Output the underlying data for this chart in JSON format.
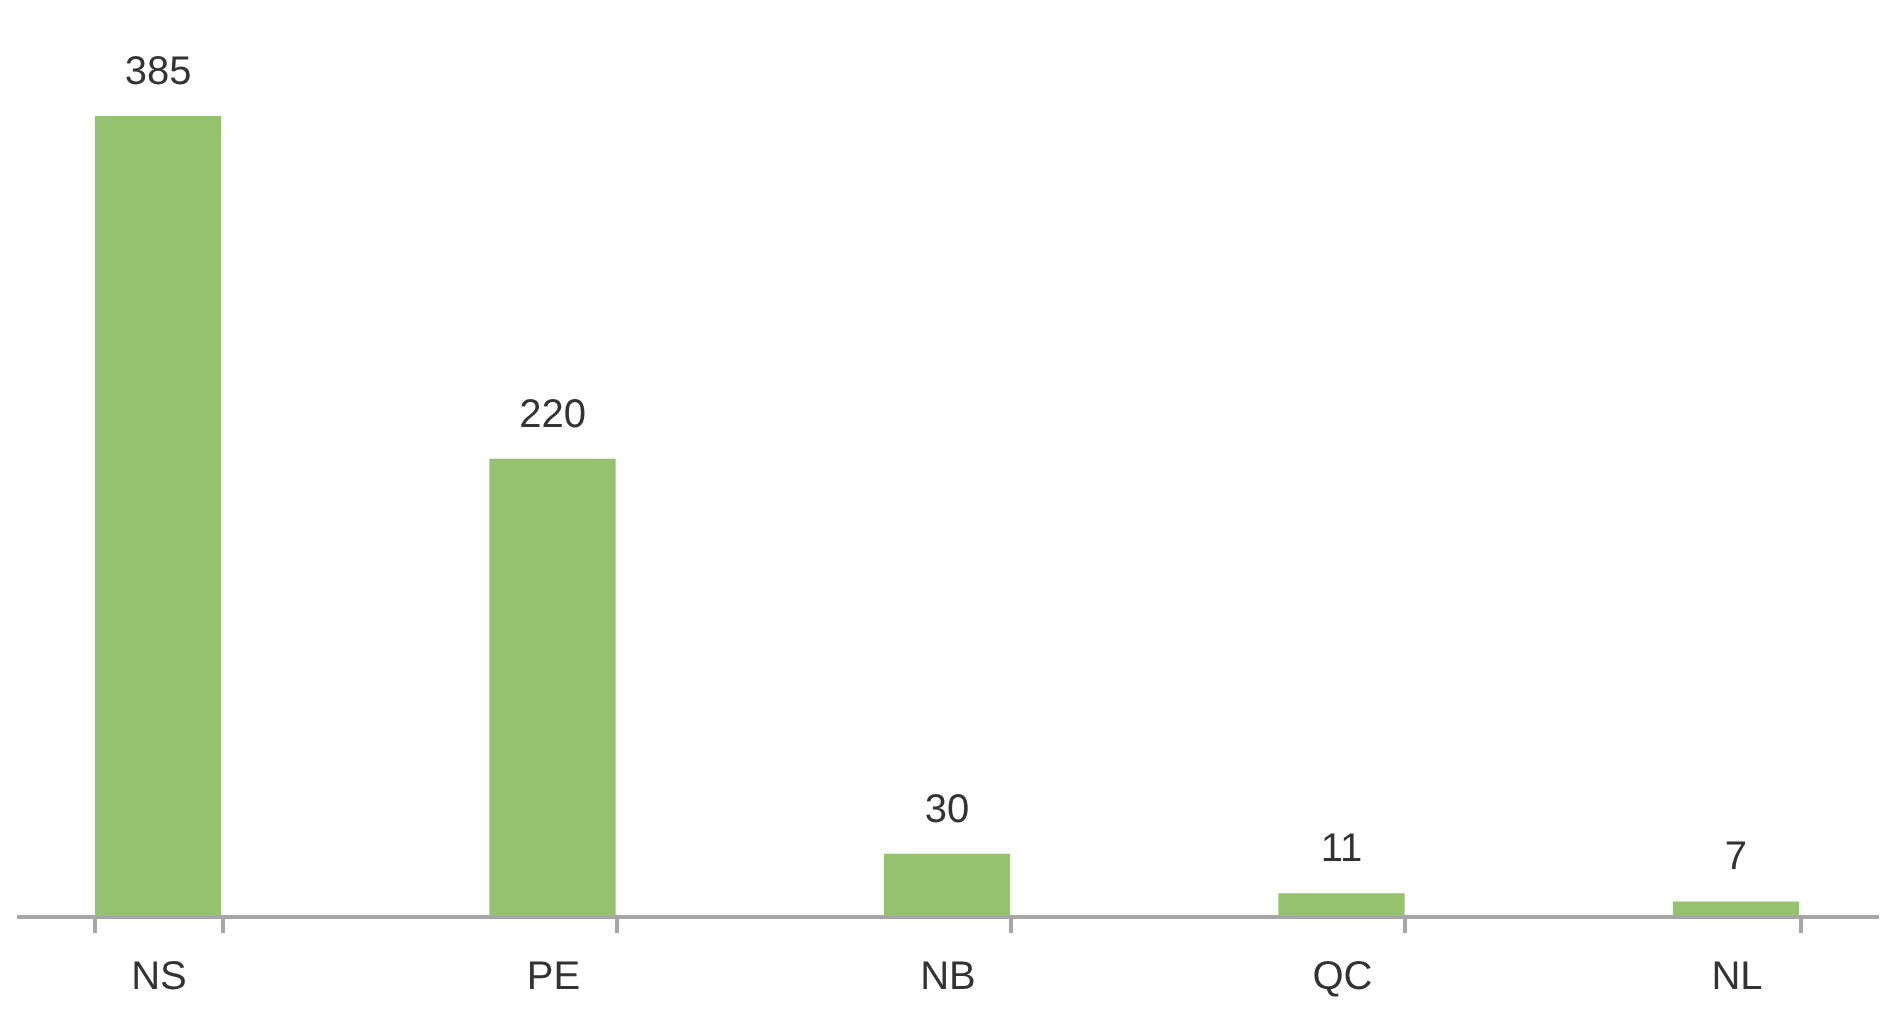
{
  "chart_data": {
    "type": "bar",
    "categories": [
      "NS",
      "PE",
      "NB",
      "QC",
      "NL"
    ],
    "values": [
      385,
      220,
      30,
      11,
      7
    ],
    "color": "#95c26f",
    "data_labels": true,
    "grid": false
  }
}
